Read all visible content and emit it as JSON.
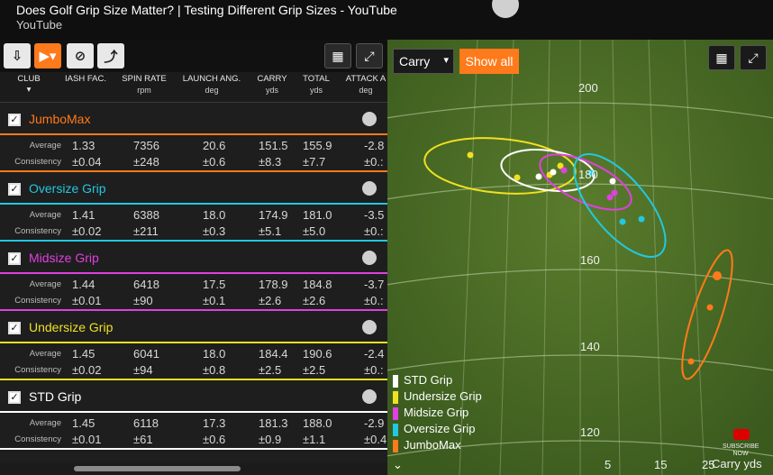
{
  "youtube": {
    "title": "Does Golf Grip Size Matter? | Testing Different Grip Sizes - YouTube",
    "channel": "YouTube"
  },
  "columns": [
    {
      "name": "CLUB",
      "unit": ""
    },
    {
      "name": "IASH FAC.",
      "unit": ""
    },
    {
      "name": "SPIN RATE",
      "unit": "rpm"
    },
    {
      "name": "LAUNCH ANG.",
      "unit": "deg"
    },
    {
      "name": "CARRY",
      "unit": "yds"
    },
    {
      "name": "TOTAL",
      "unit": "yds"
    },
    {
      "name": "ATTACK A",
      "unit": "deg"
    }
  ],
  "labels": {
    "average": "Average",
    "consistency": "Consistency"
  },
  "groups": [
    {
      "name": "JumboMax",
      "color": "#ff7a1a",
      "average": [
        "1.33",
        "7356",
        "20.6",
        "151.5",
        "155.9",
        "-2.8"
      ],
      "consistency": [
        "±0.04",
        "±248",
        "±0.6",
        "±8.3",
        "±7.7",
        "±0.:"
      ]
    },
    {
      "name": "Oversize Grip",
      "color": "#22c8e0",
      "average": [
        "1.41",
        "6388",
        "18.0",
        "174.9",
        "181.0",
        "-3.5"
      ],
      "consistency": [
        "±0.02",
        "±211",
        "±0.3",
        "±5.1",
        "±5.0",
        "±0.:"
      ]
    },
    {
      "name": "Midsize Grip",
      "color": "#e040e0",
      "average": [
        "1.44",
        "6418",
        "17.5",
        "178.9",
        "184.8",
        "-3.7"
      ],
      "consistency": [
        "±0.01",
        "±90",
        "±0.1",
        "±2.6",
        "±2.6",
        "±0.:"
      ]
    },
    {
      "name": "Undersize Grip",
      "color": "#f0e020",
      "average": [
        "1.45",
        "6041",
        "18.0",
        "184.4",
        "190.6",
        "-2.4"
      ],
      "consistency": [
        "±0.02",
        "±94",
        "±0.8",
        "±2.5",
        "±2.5",
        "±0.:"
      ]
    },
    {
      "name": "STD Grip",
      "color": "#ffffff",
      "average": [
        "1.45",
        "6118",
        "17.3",
        "181.3",
        "188.0",
        "-2.9"
      ],
      "consistency": [
        "±0.01",
        "±61",
        "±0.6",
        "±0.9",
        "±1.1",
        "±0.4"
      ]
    }
  ],
  "field": {
    "select_value": "Carry",
    "show_all": "Show all",
    "yard_labels": [
      "200",
      "180",
      "160",
      "140",
      "120"
    ],
    "x_labels": [
      "5",
      "15",
      "25"
    ],
    "carry_label": "Carry  yds",
    "subscribe": "SUBSCRIBE NOW",
    "legend": [
      {
        "name": "STD Grip",
        "color": "#ffffff"
      },
      {
        "name": "Undersize Grip",
        "color": "#f0e020"
      },
      {
        "name": "Midsize Grip",
        "color": "#e040e0"
      },
      {
        "name": "Oversize Grip",
        "color": "#22c8e0"
      },
      {
        "name": "JumboMax",
        "color": "#ff7a1a"
      }
    ]
  }
}
